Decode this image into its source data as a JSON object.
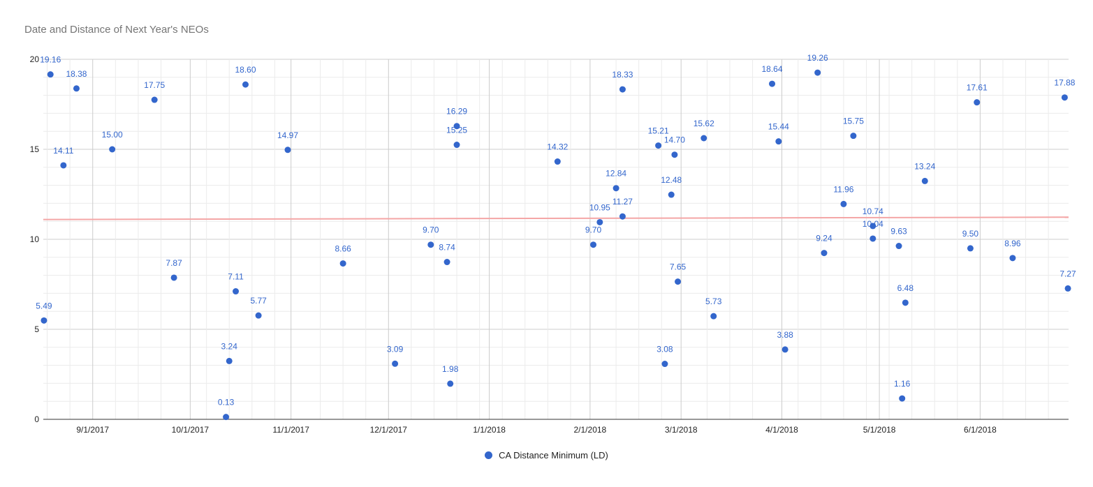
{
  "chart_data": {
    "type": "scatter",
    "title": "Date and Distance of Next Year's NEOs",
    "xlabel": "",
    "ylabel": "",
    "x_axis_type": "date",
    "xlim": [
      "2017-08-17",
      "2018-06-28"
    ],
    "ylim": [
      0,
      20
    ],
    "y_ticks": [
      0,
      5,
      10,
      15,
      20
    ],
    "x_ticks": [
      {
        "date": "2017-09-01",
        "label": "9/1/2017"
      },
      {
        "date": "2017-10-01",
        "label": "10/1/2017"
      },
      {
        "date": "2017-11-01",
        "label": "11/1/2017"
      },
      {
        "date": "2017-12-01",
        "label": "12/1/2017"
      },
      {
        "date": "2018-01-01",
        "label": "1/1/2018"
      },
      {
        "date": "2018-02-01",
        "label": "2/1/2018"
      },
      {
        "date": "2018-03-01",
        "label": "3/1/2018"
      },
      {
        "date": "2018-04-01",
        "label": "4/1/2018"
      },
      {
        "date": "2018-05-01",
        "label": "5/1/2018"
      },
      {
        "date": "2018-06-01",
        "label": "6/1/2018"
      }
    ],
    "grid": true,
    "legend_position": "bottom",
    "trendline": {
      "start": 11.1,
      "end": 11.23,
      "color": "#f4a6a6"
    },
    "series": [
      {
        "name": "CA Distance Minimum (LD)",
        "color": "#3366cc",
        "points": [
          {
            "x": "2017-08-17",
            "y": 5.49,
            "label": "5.49"
          },
          {
            "x": "2017-08-19",
            "y": 19.16,
            "label": "19.16"
          },
          {
            "x": "2017-08-23",
            "y": 14.11,
            "label": "14.11"
          },
          {
            "x": "2017-08-27",
            "y": 18.38,
            "label": "18.38"
          },
          {
            "x": "2017-09-07",
            "y": 15.0,
            "label": "15.00"
          },
          {
            "x": "2017-09-20",
            "y": 17.75,
            "label": "17.75"
          },
          {
            "x": "2017-09-26",
            "y": 7.87,
            "label": "7.87"
          },
          {
            "x": "2017-10-12",
            "y": 0.13,
            "label": "0.13"
          },
          {
            "x": "2017-10-13",
            "y": 3.24,
            "label": "3.24"
          },
          {
            "x": "2017-10-15",
            "y": 7.11,
            "label": "7.11"
          },
          {
            "x": "2017-10-18",
            "y": 18.6,
            "label": "18.60"
          },
          {
            "x": "2017-10-22",
            "y": 5.77,
            "label": "5.77"
          },
          {
            "x": "2017-10-31",
            "y": 14.97,
            "label": "14.97"
          },
          {
            "x": "2017-11-17",
            "y": 8.66,
            "label": "8.66"
          },
          {
            "x": "2017-12-03",
            "y": 3.09,
            "label": "3.09"
          },
          {
            "x": "2017-12-14",
            "y": 9.7,
            "label": "9.70"
          },
          {
            "x": "2017-12-19",
            "y": 8.74,
            "label": "8.74"
          },
          {
            "x": "2017-12-20",
            "y": 1.98,
            "label": "1.98"
          },
          {
            "x": "2017-12-22",
            "y": 16.29,
            "label": "16.29"
          },
          {
            "x": "2017-12-22",
            "y": 15.25,
            "label": "15.25"
          },
          {
            "x": "2018-01-22",
            "y": 14.32,
            "label": "14.32"
          },
          {
            "x": "2018-02-02",
            "y": 9.7,
            "label": "9.70"
          },
          {
            "x": "2018-02-04",
            "y": 10.95,
            "label": "10.95"
          },
          {
            "x": "2018-02-09",
            "y": 12.84,
            "label": "12.84"
          },
          {
            "x": "2018-02-11",
            "y": 18.33,
            "label": "18.33"
          },
          {
            "x": "2018-02-11",
            "y": 11.27,
            "label": "11.27"
          },
          {
            "x": "2018-02-22",
            "y": 15.21,
            "label": "15.21"
          },
          {
            "x": "2018-02-24",
            "y": 3.08,
            "label": "3.08"
          },
          {
            "x": "2018-02-26",
            "y": 12.48,
            "label": "12.48"
          },
          {
            "x": "2018-02-27",
            "y": 14.7,
            "label": "14.70"
          },
          {
            "x": "2018-02-28",
            "y": 7.65,
            "label": "7.65"
          },
          {
            "x": "2018-03-08",
            "y": 15.62,
            "label": "15.62"
          },
          {
            "x": "2018-03-11",
            "y": 5.73,
            "label": "5.73"
          },
          {
            "x": "2018-03-29",
            "y": 18.64,
            "label": "18.64"
          },
          {
            "x": "2018-03-31",
            "y": 15.44,
            "label": "15.44"
          },
          {
            "x": "2018-04-02",
            "y": 3.88,
            "label": "3.88"
          },
          {
            "x": "2018-04-12",
            "y": 19.26,
            "label": "19.26"
          },
          {
            "x": "2018-04-14",
            "y": 9.24,
            "label": "9.24"
          },
          {
            "x": "2018-04-20",
            "y": 11.96,
            "label": "11.96"
          },
          {
            "x": "2018-04-23",
            "y": 15.75,
            "label": "15.75"
          },
          {
            "x": "2018-04-29",
            "y": 10.74,
            "label": "10.74"
          },
          {
            "x": "2018-04-29",
            "y": 10.04,
            "label": "10.04"
          },
          {
            "x": "2018-05-07",
            "y": 9.63,
            "label": "9.63"
          },
          {
            "x": "2018-05-08",
            "y": 1.16,
            "label": "1.16"
          },
          {
            "x": "2018-05-09",
            "y": 6.48,
            "label": "6.48"
          },
          {
            "x": "2018-05-15",
            "y": 13.24,
            "label": "13.24"
          },
          {
            "x": "2018-05-29",
            "y": 9.5,
            "label": "9.50"
          },
          {
            "x": "2018-05-31",
            "y": 17.61,
            "label": "17.61"
          },
          {
            "x": "2018-06-11",
            "y": 8.96,
            "label": "8.96"
          },
          {
            "x": "2018-06-27",
            "y": 17.88,
            "label": "17.88"
          },
          {
            "x": "2018-06-28",
            "y": 7.27,
            "label": "7.27"
          }
        ]
      }
    ]
  }
}
